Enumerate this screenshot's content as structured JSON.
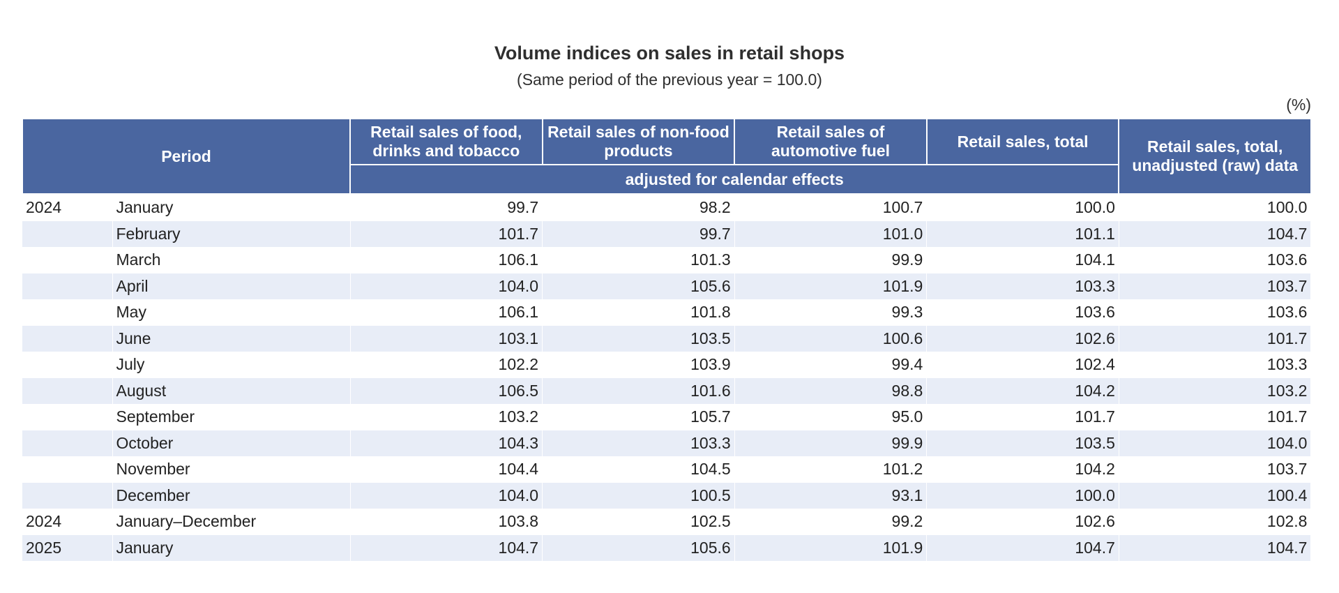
{
  "title": "Volume indices on sales in retail shops",
  "subtitle": "(Same period of the previous year = 100.0)",
  "unit": "(%)",
  "table": {
    "header": {
      "period": "Period",
      "food": "Retail sales of food, drinks and tobacco",
      "nonfood": "Retail sales of non-food products",
      "fuel": "Retail sales of automotive fuel",
      "total": "Retail sales, total",
      "raw": "Retail sales, total, unadjusted (raw) data",
      "adjusted_note": "adjusted for calendar effects"
    },
    "rows": [
      {
        "year": "2024",
        "period": "January",
        "food": "99.7",
        "nonfood": "98.2",
        "fuel": "100.7",
        "total": "100.0",
        "raw": "100.0"
      },
      {
        "year": "",
        "period": "February",
        "food": "101.7",
        "nonfood": "99.7",
        "fuel": "101.0",
        "total": "101.1",
        "raw": "104.7"
      },
      {
        "year": "",
        "period": "March",
        "food": "106.1",
        "nonfood": "101.3",
        "fuel": "99.9",
        "total": "104.1",
        "raw": "103.6"
      },
      {
        "year": "",
        "period": "April",
        "food": "104.0",
        "nonfood": "105.6",
        "fuel": "101.9",
        "total": "103.3",
        "raw": "103.7"
      },
      {
        "year": "",
        "period": "May",
        "food": "106.1",
        "nonfood": "101.8",
        "fuel": "99.3",
        "total": "103.6",
        "raw": "103.6"
      },
      {
        "year": "",
        "period": "June",
        "food": "103.1",
        "nonfood": "103.5",
        "fuel": "100.6",
        "total": "102.6",
        "raw": "101.7"
      },
      {
        "year": "",
        "period": "July",
        "food": "102.2",
        "nonfood": "103.9",
        "fuel": "99.4",
        "total": "102.4",
        "raw": "103.3"
      },
      {
        "year": "",
        "period": "August",
        "food": "106.5",
        "nonfood": "101.6",
        "fuel": "98.8",
        "total": "104.2",
        "raw": "103.2"
      },
      {
        "year": "",
        "period": "September",
        "food": "103.2",
        "nonfood": "105.7",
        "fuel": "95.0",
        "total": "101.7",
        "raw": "101.7"
      },
      {
        "year": "",
        "period": "October",
        "food": "104.3",
        "nonfood": "103.3",
        "fuel": "99.9",
        "total": "103.5",
        "raw": "104.0"
      },
      {
        "year": "",
        "period": "November",
        "food": "104.4",
        "nonfood": "104.5",
        "fuel": "101.2",
        "total": "104.2",
        "raw": "103.7"
      },
      {
        "year": "",
        "period": "December",
        "food": "104.0",
        "nonfood": "100.5",
        "fuel": "93.1",
        "total": "100.0",
        "raw": "100.4"
      },
      {
        "year": "2024",
        "period": "January–December",
        "food": "103.8",
        "nonfood": "102.5",
        "fuel": "99.2",
        "total": "102.6",
        "raw": "102.8"
      },
      {
        "year": "2025",
        "period": "January",
        "food": "104.7",
        "nonfood": "105.6",
        "fuel": "101.9",
        "total": "104.7",
        "raw": "104.7"
      }
    ]
  },
  "colors": {
    "header_bg": "#4a66a0",
    "stripe_bg": "#e8edf7"
  }
}
